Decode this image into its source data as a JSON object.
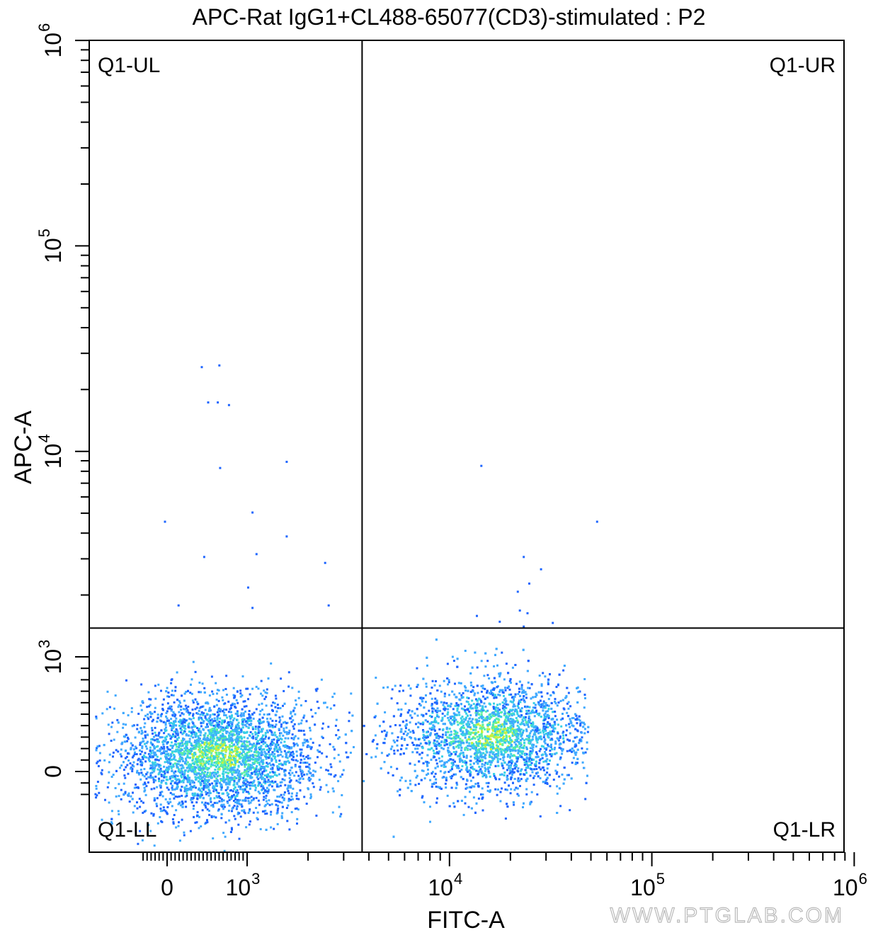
{
  "chart_data": {
    "type": "scatter",
    "title": "APC-Rat IgG1+CL488-65077(CD3)-stimulated : P2",
    "xlabel": "FITC-A",
    "ylabel": "APC-A",
    "x_scale": "biexponential",
    "y_scale": "biexponential",
    "xlim": [
      -300,
      1000000
    ],
    "ylim": [
      -220,
      1000000
    ],
    "x_ticks": [
      {
        "base": "0",
        "exp": "",
        "value": 0
      },
      {
        "base": "10",
        "exp": "3",
        "value": 1000
      },
      {
        "base": "10",
        "exp": "4",
        "value": 10000
      },
      {
        "base": "10",
        "exp": "5",
        "value": 100000
      },
      {
        "base": "10",
        "exp": "6",
        "value": 1000000
      }
    ],
    "y_ticks": [
      {
        "base": "0",
        "exp": "",
        "value": 0
      },
      {
        "base": "10",
        "exp": "3",
        "value": 1000
      },
      {
        "base": "10",
        "exp": "4",
        "value": 10000
      },
      {
        "base": "10",
        "exp": "5",
        "value": 100000
      },
      {
        "base": "10",
        "exp": "6",
        "value": 1000000
      }
    ],
    "gates": {
      "x": 3700,
      "y": 1380
    },
    "quadrants": {
      "ul": "Q1-UL",
      "ur": "Q1-UR",
      "ll": "Q1-LL",
      "lr": "Q1-LR"
    },
    "populations": [
      {
        "quadrant": "Q1-LL",
        "x_center": 600,
        "y_center": 150,
        "density": "high"
      },
      {
        "quadrant": "Q1-LR",
        "x_center": 16000,
        "y_center": 320,
        "density": "high"
      }
    ],
    "outliers": [
      [
        420,
        26000
      ],
      [
        640,
        26500
      ],
      [
        500,
        17500
      ],
      [
        620,
        17500
      ],
      [
        760,
        17000
      ],
      [
        650,
        8400
      ],
      [
        1550,
        9000
      ],
      [
        -40,
        4600
      ],
      [
        1050,
        5100
      ],
      [
        1550,
        3900
      ],
      [
        1100,
        3200
      ],
      [
        450,
        3100
      ],
      [
        2400,
        2900
      ],
      [
        1000,
        2200
      ],
      [
        130,
        1800
      ],
      [
        1050,
        1750
      ],
      [
        2500,
        1800
      ],
      [
        14200,
        8600
      ],
      [
        53000,
        4600
      ],
      [
        23000,
        3100
      ],
      [
        28000,
        2700
      ],
      [
        24500,
        2300
      ],
      [
        21500,
        2100
      ],
      [
        22000,
        1700
      ],
      [
        13500,
        1600
      ],
      [
        17500,
        1500
      ],
      [
        24000,
        1650
      ],
      [
        32000,
        1480
      ],
      [
        23000,
        1420
      ]
    ],
    "grid": false,
    "legend": "none",
    "density_colors": [
      "#1f66ff",
      "#3fa9ff",
      "#37d0e6",
      "#5cf0a0",
      "#c8ef3c"
    ]
  },
  "watermark": "WWW.PTGLAB.COM"
}
